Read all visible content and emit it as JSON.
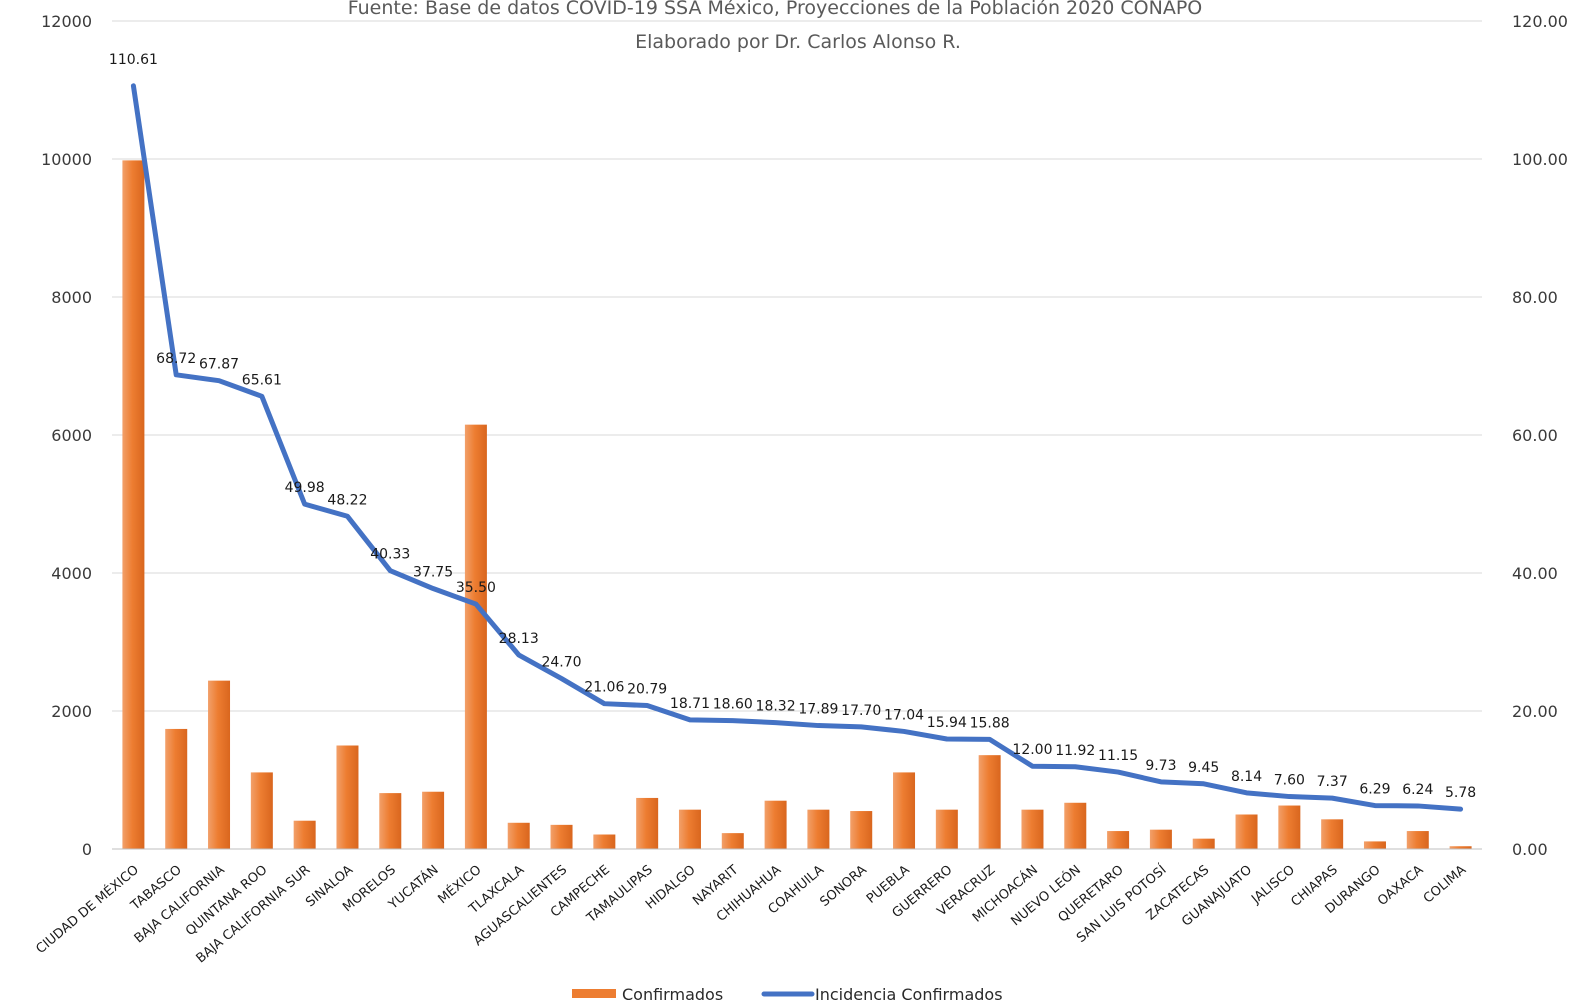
{
  "chart_data": {
    "type": "bar",
    "title": "",
    "subtitle_lines": [
      "Fuente: Base de datos COVID-19 SSA México, Proyecciones de la Población 2020 CONAPO",
      "Elaborado por Dr. Carlos Alonso R."
    ],
    "categories": [
      "CIUDAD DE MÉXICO",
      "TABASCO",
      "BAJA CALIFORNIA",
      "QUINTANA ROO",
      "BAJA CALIFORNIA SUR",
      "SINALOA",
      "MORELOS",
      "YUCATÁN",
      "MÉXICO",
      "TLAXCALA",
      "AGUASCALIENTES",
      "CAMPECHE",
      "TAMAULIPAS",
      "HIDALGO",
      "NAYARIT",
      "CHIHUAHUA",
      "COAHUILA",
      "SONORA",
      "PUEBLA",
      "GUERRERO",
      "VERACRUZ",
      "MICHOACÁN",
      "NUEVO LEÓN",
      "QUERETARO",
      "SAN LUIS POTOSÍ",
      "ZACATECAS",
      "GUANAJUATO",
      "JALISCO",
      "CHIAPAS",
      "DURANGO",
      "OAXACA",
      "COLIMA"
    ],
    "series": [
      {
        "name": "Confirmados",
        "type": "bar",
        "axis": "left",
        "color": "#ED7D31",
        "values": [
          9980,
          1740,
          2440,
          1110,
          410,
          1500,
          810,
          830,
          6150,
          380,
          350,
          210,
          740,
          570,
          230,
          700,
          570,
          550,
          1110,
          570,
          1360,
          570,
          670,
          260,
          280,
          150,
          500,
          630,
          430,
          110,
          260,
          40
        ]
      },
      {
        "name": "Incidencia Confirmados",
        "type": "line",
        "axis": "right",
        "color": "#4472C4",
        "values": [
          110.61,
          68.72,
          67.87,
          65.61,
          49.98,
          48.22,
          40.33,
          37.75,
          35.5,
          28.13,
          24.7,
          21.06,
          20.79,
          18.71,
          18.6,
          18.32,
          17.89,
          17.7,
          17.04,
          15.94,
          15.88,
          12.0,
          11.92,
          11.15,
          9.73,
          9.45,
          8.14,
          7.6,
          7.37,
          6.29,
          6.24,
          5.78
        ],
        "labels": [
          "110.61",
          "68.72",
          "67.87",
          "65.61",
          "49.98",
          "48.22",
          "40.33",
          "37.75",
          "35.50",
          "28.13",
          "24.70",
          "21.06",
          "20.79",
          "18.71",
          "18.60",
          "18.32",
          "17.89",
          "17.70",
          "17.04",
          "15.94",
          "15.88",
          "12.00",
          "11.92",
          "11.15",
          "9.73",
          "9.45",
          "8.14",
          "7.60",
          "7.37",
          "6.29",
          "6.24",
          "5.78"
        ]
      }
    ],
    "y_left": {
      "min": 0,
      "max": 12000,
      "ticks": [
        "0",
        "2000",
        "4000",
        "6000",
        "8000",
        "10000",
        "12000"
      ]
    },
    "y_right": {
      "min": 0,
      "max": 120,
      "ticks": [
        "0.00",
        "20.00",
        "40.00",
        "60.00",
        "80.00",
        "100.00",
        "120.00"
      ]
    },
    "xlabel": "",
    "ylabel": "",
    "grid": true,
    "legend": "bottom"
  }
}
